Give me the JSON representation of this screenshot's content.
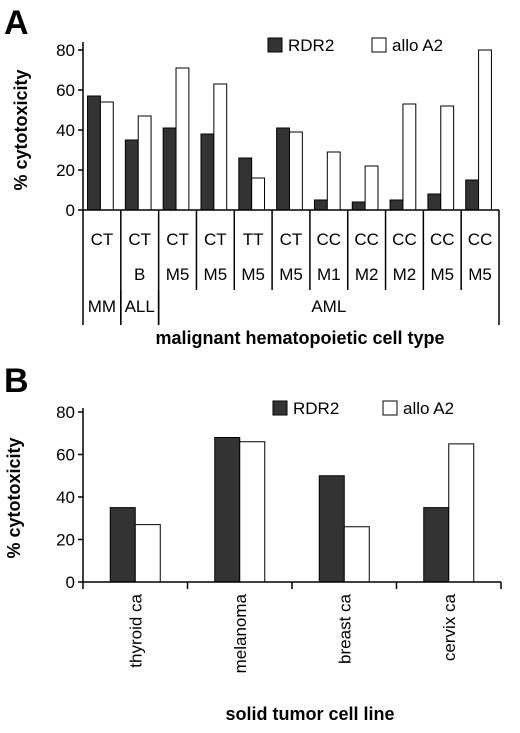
{
  "chart_data": [
    {
      "type": "bar",
      "panel_label": "A",
      "ylabel": "% cytotoxicity",
      "xlabel": "malignant hematopoietic cell type",
      "ylim": [
        0,
        80
      ],
      "yticks": [
        0,
        20,
        40,
        60,
        80
      ],
      "legend": [
        "RDR2",
        "allo A2"
      ],
      "legend_position": "top-right",
      "series": [
        {
          "name": "RDR2",
          "color": "#333333",
          "values": [
            57,
            35,
            41,
            38,
            26,
            41,
            5,
            4,
            5,
            8,
            15
          ]
        },
        {
          "name": "allo A2",
          "color": "#ffffff",
          "values": [
            54,
            47,
            71,
            63,
            16,
            39,
            29,
            22,
            53,
            52,
            80
          ]
        }
      ],
      "category_rows": [
        [
          "CT",
          "CT",
          "CT",
          "CT",
          "TT",
          "CT",
          "CC",
          "CC",
          "CC",
          "CC",
          "CC"
        ],
        [
          "",
          "B",
          "M5",
          "M5",
          "M5",
          "M5",
          "M1",
          "M2",
          "M2",
          "M5",
          "M5"
        ]
      ],
      "group_labels": [
        {
          "label": "MM",
          "span": [
            0,
            0
          ]
        },
        {
          "label": "ALL",
          "span": [
            1,
            1
          ]
        },
        {
          "label": "AML",
          "span": [
            2,
            10
          ]
        }
      ]
    },
    {
      "type": "bar",
      "panel_label": "B",
      "ylabel": "% cytotoxicity",
      "xlabel": "solid tumor cell line",
      "ylim": [
        0,
        80
      ],
      "yticks": [
        0,
        20,
        40,
        60,
        80
      ],
      "legend": [
        "RDR2",
        "allo A2"
      ],
      "legend_position": "top-right",
      "categories": [
        "thyroid ca",
        "melanoma",
        "breast ca",
        "cervix ca"
      ],
      "series": [
        {
          "name": "RDR2",
          "color": "#333333",
          "values": [
            35,
            68,
            50,
            35
          ]
        },
        {
          "name": "allo A2",
          "color": "#ffffff",
          "values": [
            27,
            66,
            26,
            65
          ]
        }
      ]
    }
  ]
}
